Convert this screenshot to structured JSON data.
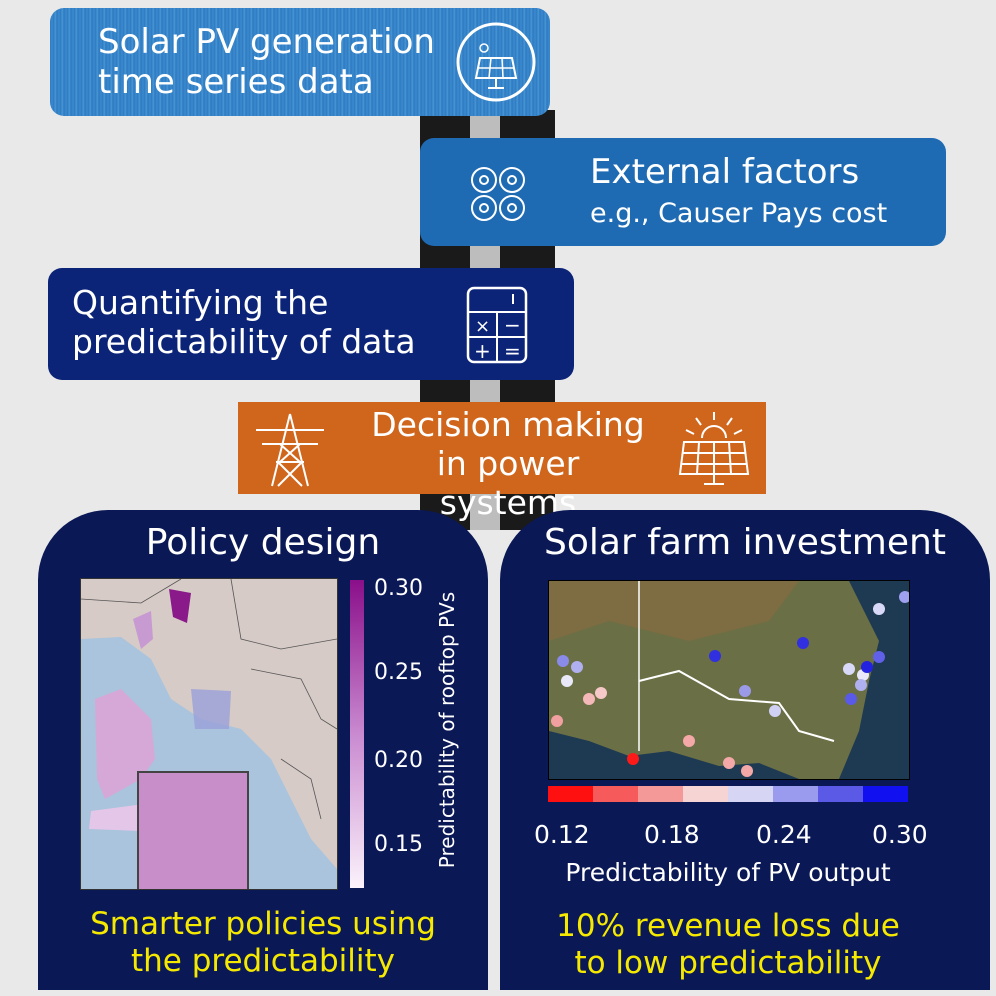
{
  "boxes": {
    "solar_pv": {
      "line1": "Solar PV generation",
      "line2": "time series data"
    },
    "external": {
      "line1": "External factors",
      "line2": "e.g., Causer Pays cost"
    },
    "quantify": {
      "line1": "Quantifying the",
      "line2": "predictability of data"
    },
    "decision": {
      "line1": "Decision making",
      "line2": "in power systems"
    }
  },
  "policy_panel": {
    "title": "Policy design",
    "colorbar_label": "Predictability of rooftop PVs",
    "colorbar_ticks": [
      "0.30",
      "0.25",
      "0.20",
      "0.15"
    ],
    "footer_line1": "Smarter policies using",
    "footer_line2": "the predictability"
  },
  "solar_panel": {
    "title": "Solar farm investment",
    "colorbar_ticks": [
      "0.12",
      "0.18",
      "0.24",
      "0.30"
    ],
    "colorbar_label": "Predictability of PV output",
    "footer_line1": "10% revenue loss due",
    "footer_line2": "to low predictability"
  },
  "colors": {
    "box_light_blue": "#2f79c0",
    "box_mid_blue": "#1f6bb3",
    "box_dark_blue": "#0c2478",
    "box_orange": "#d0651c",
    "panel_navy": "#0b1856",
    "footer_yellow": "#f5e900"
  },
  "icons": [
    "solar-panel-icon",
    "puzzle-gears-icon",
    "calculator-icon",
    "power-tower-icon",
    "solar-sun-icon"
  ]
}
